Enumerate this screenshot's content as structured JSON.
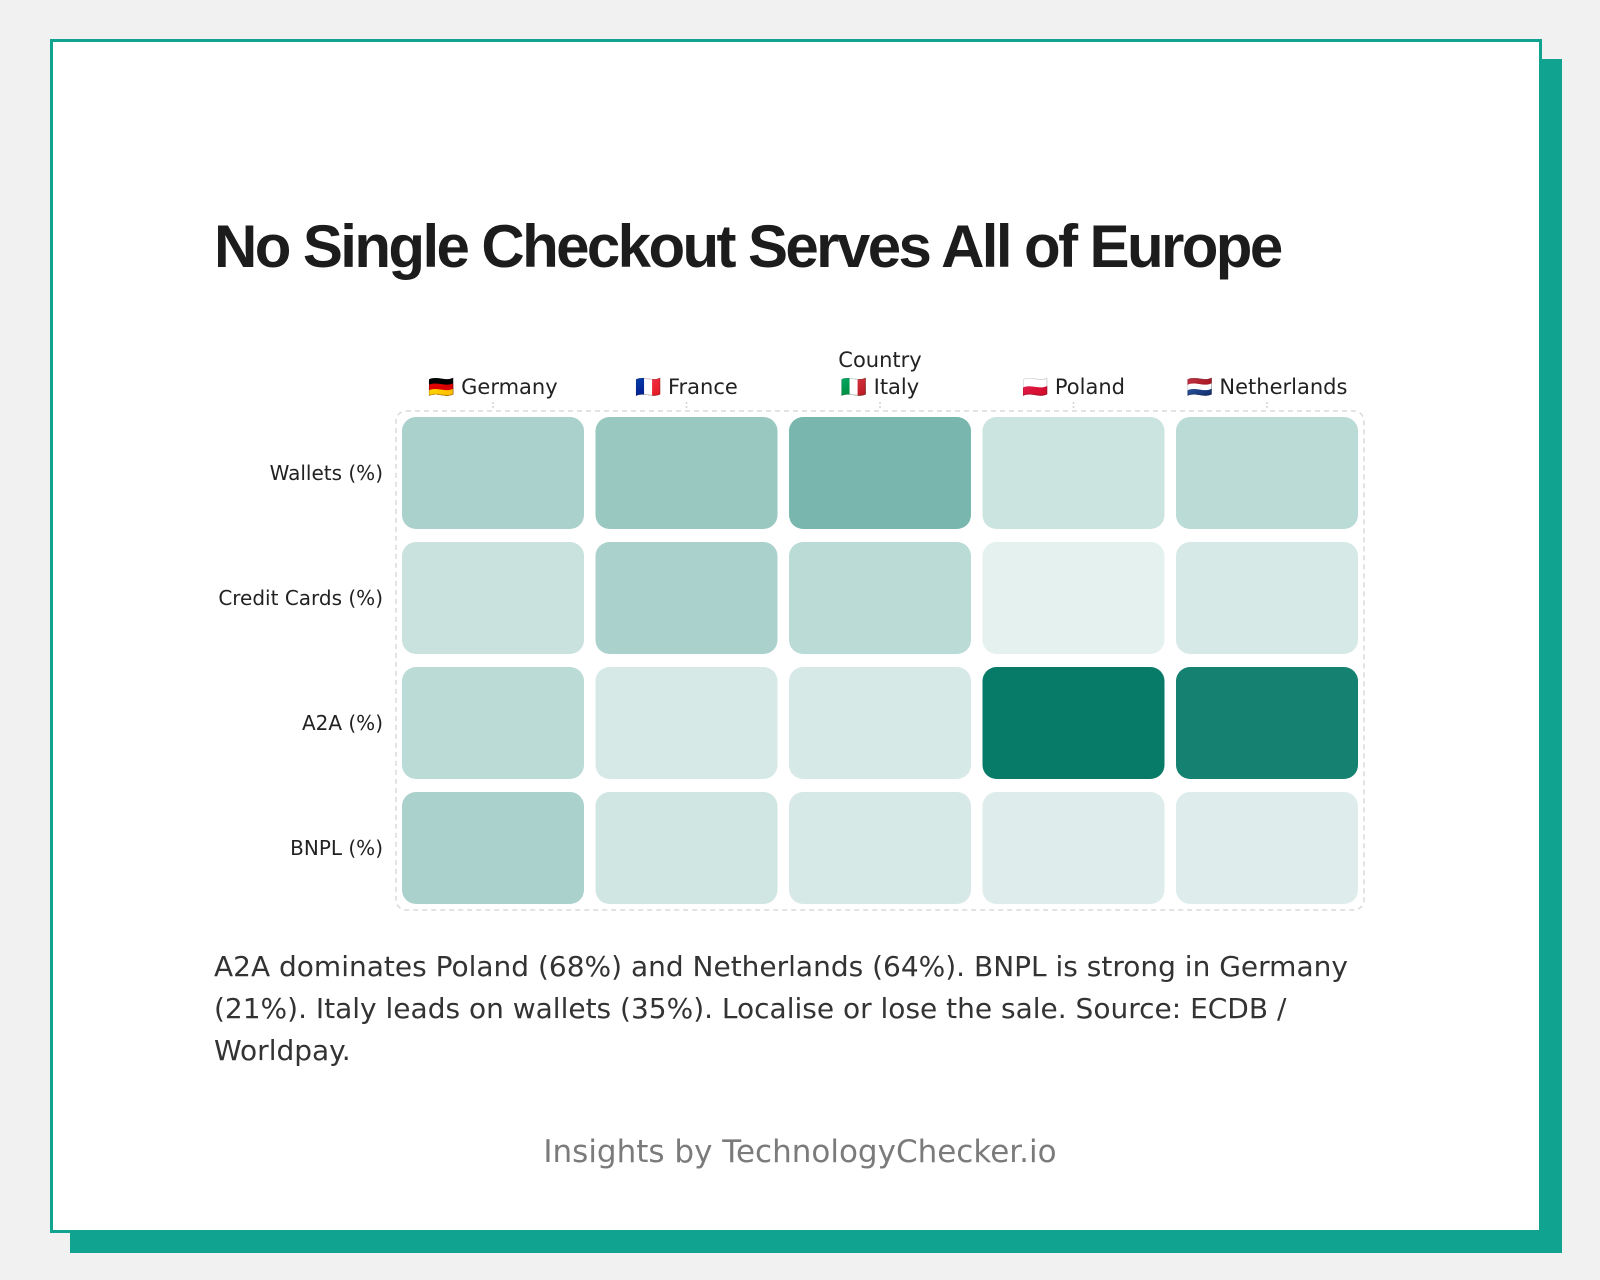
{
  "title": "No Single Checkout Serves All of Europe",
  "description": "A2A dominates Poland (68%) and Netherlands (64%). BNPL is strong in Germany (21%). Italy leads on wallets (35%). Localise or lose the sale. Source: ECDB / Worldpay.",
  "footer": "Insights by TechnologyChecker.io",
  "colors": {
    "accent": "#10a38f",
    "cell_max": "#077a68",
    "cell_min": "#ffffff"
  },
  "chart_data": {
    "type": "heatmap",
    "xlabel": "Country",
    "x": [
      {
        "flag": "🇩🇪",
        "name": "Germany"
      },
      {
        "flag": "🇫🇷",
        "name": "France"
      },
      {
        "flag": "🇮🇹",
        "name": "Italy"
      },
      {
        "flag": "🇵🇱",
        "name": "Poland"
      },
      {
        "flag": "🇳🇱",
        "name": "Netherlands"
      }
    ],
    "y": [
      "Wallets (%)",
      "Credit Cards (%)",
      "A2A (%)",
      "BNPL (%)"
    ],
    "values": [
      [
        21,
        26,
        35,
        11,
        16
      ],
      [
        12,
        21,
        16,
        4,
        8
      ],
      [
        16,
        8,
        8,
        68,
        64
      ],
      [
        21,
        10,
        8,
        6,
        6
      ]
    ],
    "value_range": [
      0,
      68
    ],
    "grid": false,
    "legend": "none"
  }
}
